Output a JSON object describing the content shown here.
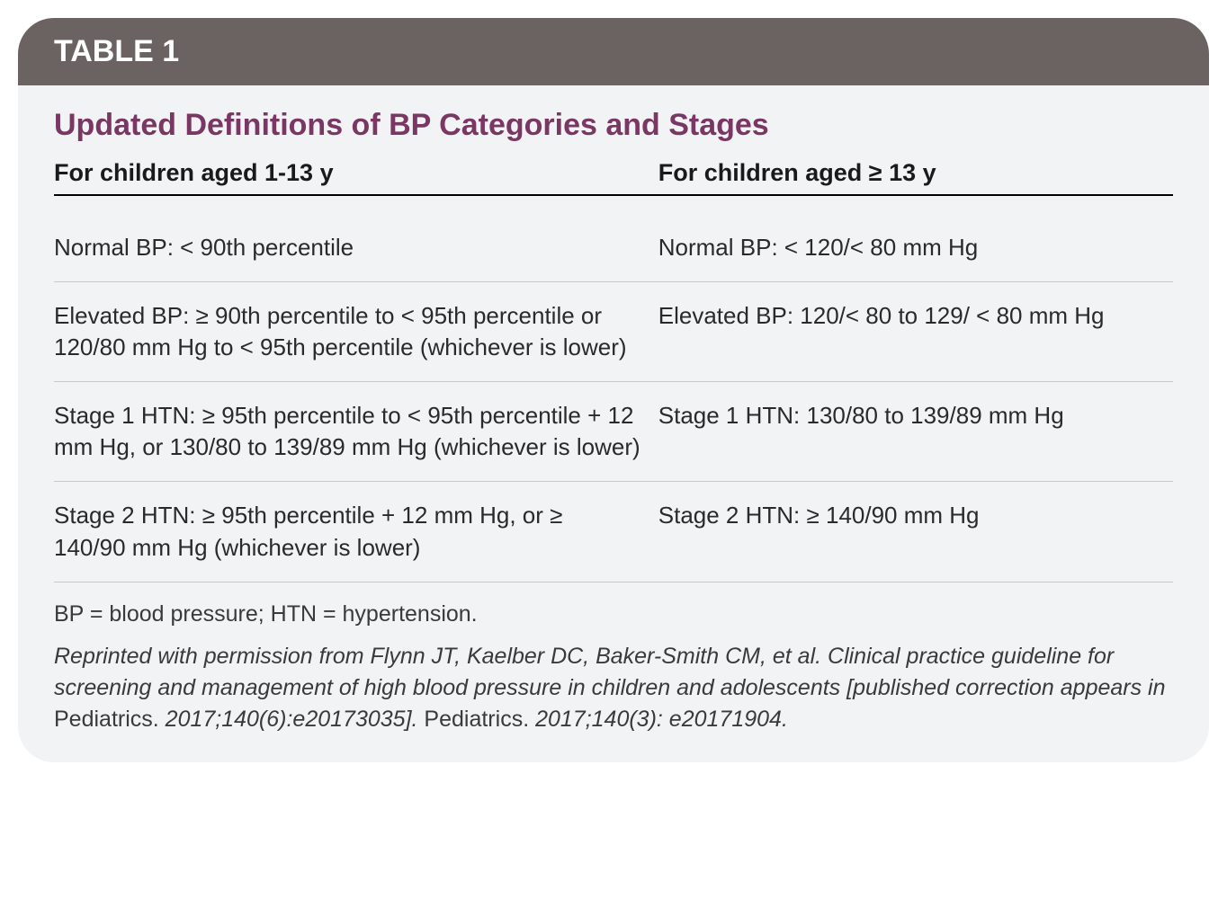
{
  "table": {
    "header_label": "TABLE 1",
    "title": "Updated Definitions of BP Categories and Stages",
    "columns": [
      "For children aged 1-13 y",
      "For children aged ≥ 13 y"
    ],
    "rows": [
      {
        "left": "Normal BP: < 90th percentile",
        "right": "Normal BP: < 120/< 80 mm Hg"
      },
      {
        "left": "Elevated BP: ≥ 90th percentile to < 95th percentile or 120/80 mm Hg to < 95th percentile (whichever is lower)",
        "right": "Elevated BP: 120/< 80 to 129/ < 80 mm Hg"
      },
      {
        "left": "Stage 1 HTN: ≥ 95th percentile to < 95th percentile + 12 mm Hg, or 130/80 to 139/89 mm Hg (which­ever is lower)",
        "right": "Stage 1 HTN: 130/80 to 139/89 mm Hg"
      },
      {
        "left": "Stage 2 HTN: ≥ 95th percentile + 12 mm Hg, or ≥ 140/90 mm Hg (whichever is lower)",
        "right": "Stage 2 HTN: ≥ 140/90 mm Hg"
      }
    ],
    "footnote": "BP = blood pressure; HTN = hypertension.",
    "citation_prefix": "Reprinted with permission from Flynn JT, Kaelber DC, Baker-Smith CM, et al. Clinical practice guideline for screening and management of high blood pressure in children and adolescents [published correction appears in ",
    "citation_journal1": "Pediatrics.",
    "citation_mid": " 2017;140(6):e20173035]. ",
    "citation_journal2": "Pediatrics.",
    "citation_suffix": " 2017;140(3): e20171904."
  },
  "styles": {
    "header_bg": "#6a6361",
    "header_text_color": "#ffffff",
    "body_bg": "#f1f3f5",
    "title_color": "#7a3764",
    "border_radius": 40,
    "header_fontsize": 34,
    "title_fontsize": 34,
    "colheader_fontsize": 27,
    "cell_fontsize": 26,
    "footnote_fontsize": 25,
    "col_left_width_pct": 54,
    "col_right_width_pct": 46,
    "row_border_color": "#c8c8c8",
    "header_rule_color": "#000000",
    "bottom_rule_color": "#7a7a7a"
  }
}
